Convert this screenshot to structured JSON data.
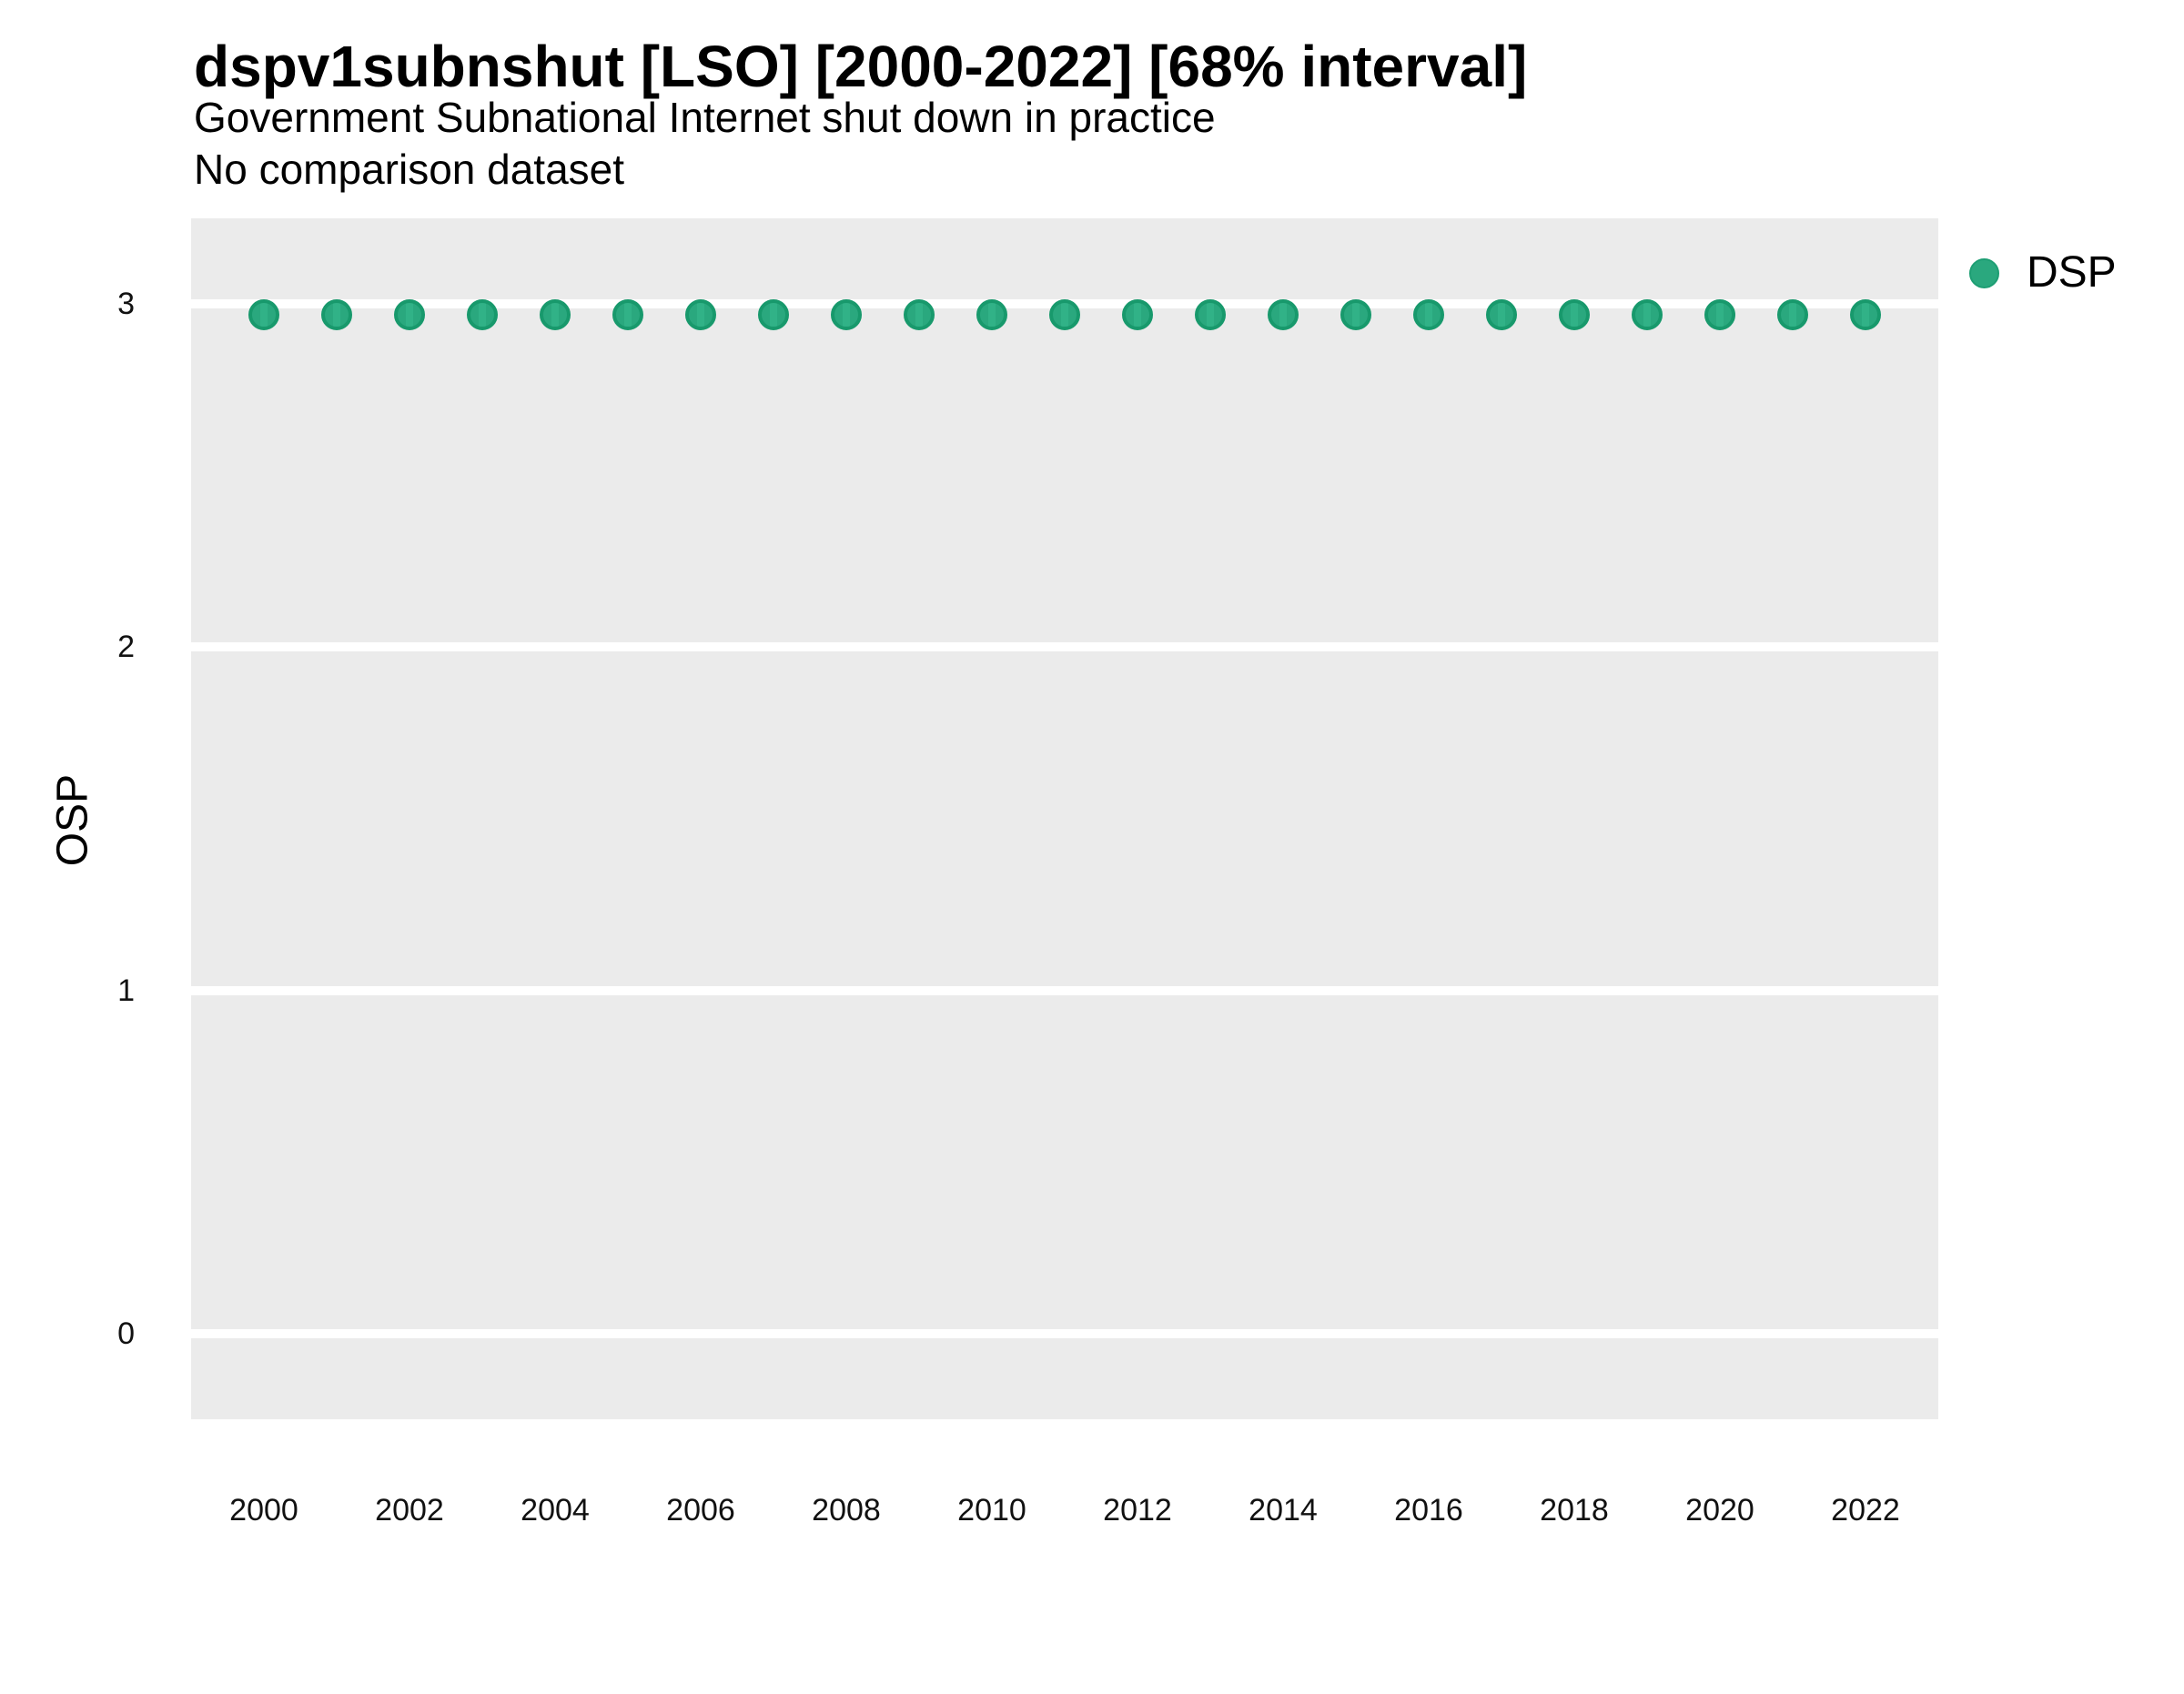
{
  "header": {
    "title": "dspv1subnshut [LSO] [2000-2022] [68% interval]",
    "subtitle": "Government Subnational Internet shut down in practice",
    "subtitle2": "No comparison dataset"
  },
  "colors": {
    "point_fill": "#2AA87E",
    "point_border": "#18996C",
    "panel_background": "#EBEBEB",
    "gridline": "#FFFFFF",
    "text": "#000000"
  },
  "chart_data": {
    "type": "scatter",
    "title": "dspv1subnshut [LSO] [2000-2022] [68% interval]",
    "subtitle": "Government Subnational Internet shut down in practice",
    "subtitle2": "No comparison dataset",
    "xlabel": "",
    "ylabel": "OSP",
    "legend_position": "right-top",
    "grid": "horizontal-major-white",
    "xlim": [
      1999,
      2023
    ],
    "ylim": [
      -0.25,
      3.25
    ],
    "xticks": [
      2000,
      2002,
      2004,
      2006,
      2008,
      2010,
      2012,
      2014,
      2016,
      2018,
      2020,
      2022
    ],
    "yticks": [
      0,
      1,
      2,
      3
    ],
    "x": [
      2000,
      2001,
      2002,
      2003,
      2004,
      2005,
      2006,
      2007,
      2008,
      2009,
      2010,
      2011,
      2012,
      2013,
      2014,
      2015,
      2016,
      2017,
      2018,
      2019,
      2020,
      2021,
      2022
    ],
    "series": [
      {
        "name": "DSP",
        "values": [
          2.97,
          2.97,
          2.97,
          2.97,
          2.97,
          2.97,
          2.97,
          2.97,
          2.97,
          2.97,
          2.97,
          2.97,
          2.97,
          2.97,
          2.97,
          2.97,
          2.97,
          2.97,
          2.97,
          2.97,
          2.97,
          2.97,
          2.97
        ]
      }
    ]
  }
}
